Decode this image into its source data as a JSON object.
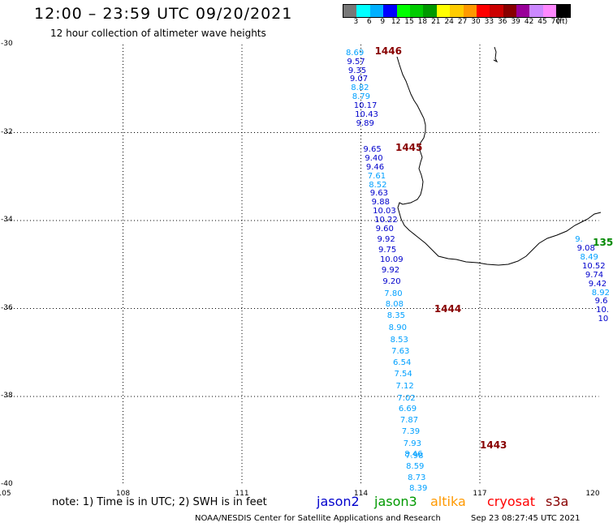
{
  "title": "12:00 – 23:59 UTC 09/20/2021",
  "subtitle": "12 hour collection of altimeter wave heights",
  "color_scale": {
    "colors": [
      "#777777",
      "#00ffff",
      "#00b0ff",
      "#0000ff",
      "#00ff00",
      "#00cc00",
      "#009900",
      "#ffff00",
      "#ffcc00",
      "#ff9900",
      "#ff0000",
      "#cc0000",
      "#880000",
      "#990099",
      "#cc88ff",
      "#ff88ff",
      "#000000"
    ],
    "labels": [
      "3",
      "6",
      "9",
      "12",
      "15",
      "18",
      "21",
      "24",
      "27",
      "30",
      "33",
      "36",
      "39",
      "42",
      "45",
      "70",
      "(ft)"
    ]
  },
  "axes": {
    "y_labels": [
      "-30",
      "-32",
      "-34",
      "-36",
      "-38",
      "-40"
    ],
    "x_labels": [
      "105",
      "108",
      "111",
      "114",
      "117",
      "120"
    ]
  },
  "note": "note: 1) Time is in UTC; 2) SWH is in feet",
  "satellites": [
    {
      "name": "jason2",
      "color": "#0000cc"
    },
    {
      "name": "jason3",
      "color": "#009900"
    },
    {
      "name": "altika",
      "color": "#ff9900"
    },
    {
      "name": "cryosat",
      "color": "#ff0000"
    },
    {
      "name": "s3a",
      "color": "#880000"
    }
  ],
  "footer": "NOAA/NESDIS Center for Satellite Applications and Research",
  "timestamp": "Sep 23 08:27:45 UTC 2021",
  "pass_labels": [
    {
      "text": "1446",
      "lon": 114.35,
      "lat": -30.15,
      "color": "#880000"
    },
    {
      "text": "1445",
      "lon": 114.87,
      "lat": -32.35,
      "color": "#880000"
    },
    {
      "text": "1444",
      "lon": 115.85,
      "lat": -36.0,
      "color": "#880000"
    },
    {
      "text": "1443",
      "lon": 117.0,
      "lat": -39.1,
      "color": "#880000"
    },
    {
      "text": "135",
      "lon": 119.85,
      "lat": -34.5,
      "color": "#008800"
    }
  ],
  "wave_heights": [
    {
      "v": "8.69",
      "lon": 113.62,
      "lat": -30.2,
      "c": "#00a0ff"
    },
    {
      "v": "9.57",
      "lon": 113.65,
      "lat": -30.4,
      "c": "#0000cc"
    },
    {
      "v": "9.35",
      "lon": 113.68,
      "lat": -30.6,
      "c": "#0000cc"
    },
    {
      "v": "9.07",
      "lon": 113.72,
      "lat": -30.8,
      "c": "#0000cc"
    },
    {
      "v": "8.82",
      "lon": 113.75,
      "lat": -31.0,
      "c": "#00a0ff"
    },
    {
      "v": "8.79",
      "lon": 113.78,
      "lat": -31.2,
      "c": "#00a0ff"
    },
    {
      "v": "10.17",
      "lon": 113.82,
      "lat": -31.4,
      "c": "#0000cc"
    },
    {
      "v": "10.43",
      "lon": 113.85,
      "lat": -31.6,
      "c": "#0000cc"
    },
    {
      "v": "9.89",
      "lon": 113.88,
      "lat": -31.8,
      "c": "#0000cc"
    },
    {
      "v": "9.65",
      "lon": 114.06,
      "lat": -32.4,
      "c": "#0000cc"
    },
    {
      "v": "9.40",
      "lon": 114.1,
      "lat": -32.6,
      "c": "#0000cc"
    },
    {
      "v": "9.46",
      "lon": 114.13,
      "lat": -32.8,
      "c": "#0000cc"
    },
    {
      "v": "7.61",
      "lon": 114.17,
      "lat": -33.0,
      "c": "#00a0ff"
    },
    {
      "v": "8.52",
      "lon": 114.2,
      "lat": -33.2,
      "c": "#00a0ff"
    },
    {
      "v": "9.63",
      "lon": 114.23,
      "lat": -33.4,
      "c": "#0000cc"
    },
    {
      "v": "9.88",
      "lon": 114.27,
      "lat": -33.6,
      "c": "#0000cc"
    },
    {
      "v": "10.03",
      "lon": 114.3,
      "lat": -33.8,
      "c": "#0000cc"
    },
    {
      "v": "10.22",
      "lon": 114.34,
      "lat": -34.0,
      "c": "#0000cc"
    },
    {
      "v": "9.60",
      "lon": 114.37,
      "lat": -34.2,
      "c": "#0000cc"
    },
    {
      "v": "9.92",
      "lon": 114.41,
      "lat": -34.45,
      "c": "#0000cc"
    },
    {
      "v": "9.75",
      "lon": 114.44,
      "lat": -34.68,
      "c": "#0000cc"
    },
    {
      "v": "10.09",
      "lon": 114.48,
      "lat": -34.9,
      "c": "#0000cc"
    },
    {
      "v": "9.92",
      "lon": 114.52,
      "lat": -35.15,
      "c": "#0000cc"
    },
    {
      "v": "9.20",
      "lon": 114.55,
      "lat": -35.4,
      "c": "#0000cc"
    },
    {
      "v": "7.80",
      "lon": 114.59,
      "lat": -35.68,
      "c": "#00a0ff"
    },
    {
      "v": "8.08",
      "lon": 114.62,
      "lat": -35.92,
      "c": "#00a0ff"
    },
    {
      "v": "8.35",
      "lon": 114.66,
      "lat": -36.18,
      "c": "#00a0ff"
    },
    {
      "v": "8.90",
      "lon": 114.7,
      "lat": -36.45,
      "c": "#00a0ff"
    },
    {
      "v": "8.53",
      "lon": 114.74,
      "lat": -36.72,
      "c": "#00a0ff"
    },
    {
      "v": "7.63",
      "lon": 114.77,
      "lat": -36.98,
      "c": "#00a0ff"
    },
    {
      "v": "6.54",
      "lon": 114.81,
      "lat": -37.25,
      "c": "#00a0ff"
    },
    {
      "v": "7.54",
      "lon": 114.84,
      "lat": -37.5,
      "c": "#00a0ff"
    },
    {
      "v": "7.12",
      "lon": 114.88,
      "lat": -37.77,
      "c": "#00a0ff"
    },
    {
      "v": "7.02",
      "lon": 114.92,
      "lat": -38.05,
      "c": "#00a0ff"
    },
    {
      "v": "6.69",
      "lon": 114.95,
      "lat": -38.3,
      "c": "#00a0ff"
    },
    {
      "v": "7.87",
      "lon": 114.99,
      "lat": -38.55,
      "c": "#00a0ff"
    },
    {
      "v": "7.39",
      "lon": 115.03,
      "lat": -38.82,
      "c": "#00a0ff"
    },
    {
      "v": "7.93",
      "lon": 115.07,
      "lat": -39.08,
      "c": "#00a0ff"
    },
    {
      "v": "8.46",
      "lon": 115.1,
      "lat": -39.32,
      "c": "#00a0ff"
    },
    {
      "v": "7.98",
      "lon": 115.12,
      "lat": -39.37,
      "c": "#00a0ff"
    },
    {
      "v": "8.59",
      "lon": 115.14,
      "lat": -39.6,
      "c": "#00a0ff"
    },
    {
      "v": "8.73",
      "lon": 115.18,
      "lat": -39.86,
      "c": "#00a0ff"
    },
    {
      "v": "8.39",
      "lon": 115.22,
      "lat": -40.1,
      "c": "#00a0ff"
    },
    {
      "v": "9.",
      "lon": 119.4,
      "lat": -34.45,
      "c": "#00a0ff"
    },
    {
      "v": "9.08",
      "lon": 119.45,
      "lat": -34.65,
      "c": "#0000cc"
    },
    {
      "v": "8.49",
      "lon": 119.53,
      "lat": -34.85,
      "c": "#00a0ff"
    },
    {
      "v": "10.52",
      "lon": 119.58,
      "lat": -35.05,
      "c": "#0000cc"
    },
    {
      "v": "9.74",
      "lon": 119.66,
      "lat": -35.25,
      "c": "#0000cc"
    },
    {
      "v": "9.42",
      "lon": 119.74,
      "lat": -35.45,
      "c": "#0000cc"
    },
    {
      "v": "8.92",
      "lon": 119.82,
      "lat": -35.65,
      "c": "#00a0ff"
    },
    {
      "v": "9.6",
      "lon": 119.9,
      "lat": -35.85,
      "c": "#0000cc"
    },
    {
      "v": "10.",
      "lon": 119.93,
      "lat": -36.05,
      "c": "#0000cc"
    },
    {
      "v": "10",
      "lon": 119.98,
      "lat": -36.25,
      "c": "#0000cc"
    }
  ]
}
